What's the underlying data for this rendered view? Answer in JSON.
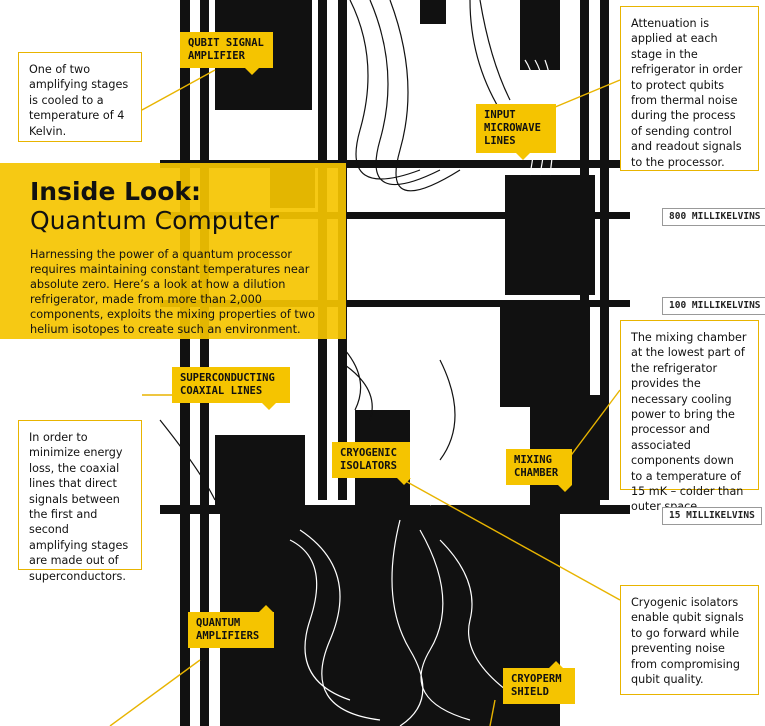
{
  "title_line1": "Inside Look:",
  "title_line2": "Quantum Computer",
  "intro": "Harnessing the power of a quantum processor requires maintaining constant temperatures near absolute zero.  Here’s a look at how a dilution refrigerator, made from more than 2,000 components, exploits the mixing properties of two helium isotopes to create such an environment.",
  "labels": {
    "qubit_signal_amplifier": "QUBIT SIGNAL AMPLIFIER",
    "input_microwave_lines": "INPUT MICROWAVE LINES",
    "superconducting_coaxial_lines": "SUPERCONDUCTING COAXIAL LINES",
    "cryogenic_isolators": "CRYOGENIC ISOLATORS",
    "mixing_chamber": "MIXING CHAMBER",
    "quantum_amplifiers": "QUANTUM AMPLIFIERS",
    "cryoperm_shield": "CRYOPERM SHIELD"
  },
  "temperatures": {
    "t800": "800 MILLIKELVINS",
    "t100": "100 MILLIKELVINS",
    "t15": "15 MILLIKELVINS"
  },
  "notes": {
    "amplifier": "One of two amplifying stages is cooled to a temperature of 4 Kelvin.",
    "attenuation": "Attenuation is applied at each stage in the refrigerator in order to protect qubits from thermal noise during the process of sending control and readout signals to the processor.",
    "mixing": "The mixing chamber at the lowest part of the refrigerator provides the necessary cooling power to bring the processor and associated components down to a temperature of 15 mK – colder than outer space.",
    "coaxial": "In order to minimize energy loss, the coaxial lines that direct signals between the first and second amplifying stages are made out of superconductors.",
    "isolators": "Cryogenic isolators enable qubit signals to go forward while preventing noise from compromising qubit quality."
  },
  "colors": {
    "accent": "#f5c400",
    "machine": "#111111"
  }
}
